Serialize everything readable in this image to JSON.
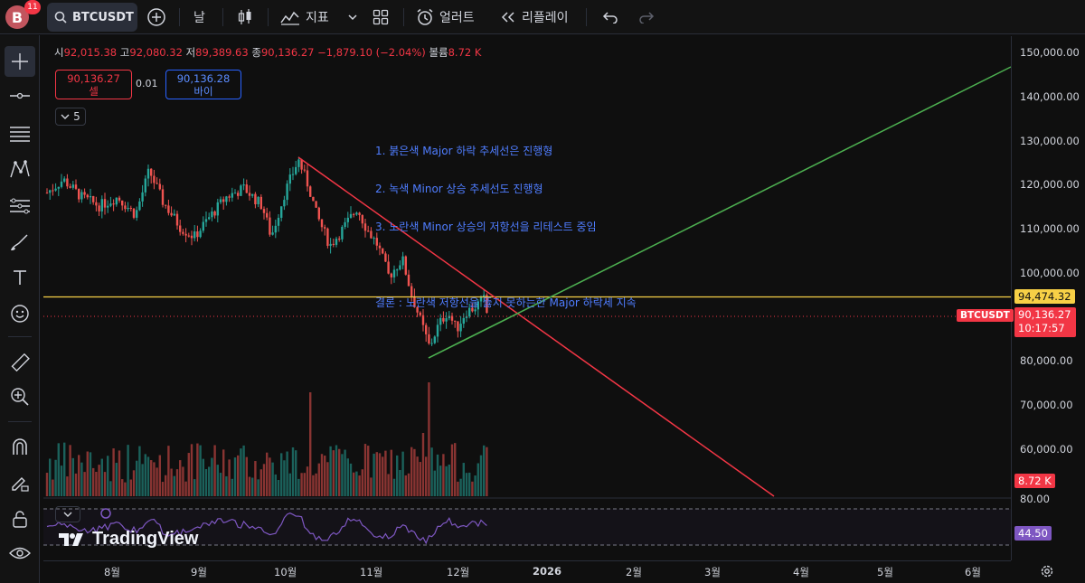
{
  "header": {
    "avatar_letter": "B",
    "notification_count": "11",
    "symbol": "BTCUSDT",
    "interval": "날",
    "indicators_label": "지표",
    "alerts_label": "얼러트",
    "replay_label": "리플레이"
  },
  "legend": {
    "open_label": "시",
    "open": "92,015.38",
    "high_label": "고",
    "high": "92,080.32",
    "low_label": "저",
    "low": "89,389.63",
    "close_label": "종",
    "close": "90,136.27",
    "change": "−1,879.10 (−2.04%)",
    "volume_label": "볼륨",
    "volume": "8.72 K"
  },
  "trade": {
    "sell_price": "90,136.27",
    "sell_label": "셀",
    "spread": "0.01",
    "buy_price": "90,136.28",
    "buy_label": "바이",
    "collapse_count": "5"
  },
  "annotation": {
    "line1": "1. 붉은색 Major 하락 추세선은 진행형",
    "line2": "2. 녹색 Minor 상승 추세선도 진행형",
    "line3": "3. 노란색 Minor 상승의 저항선을 리테스트 중임",
    "line4": "결론 : 노란색 저항선을 뚫지 못하는한 Major 하락세 지속"
  },
  "price_axis": {
    "labels": [
      "150,000.00",
      "140,000.00",
      "130,000.00",
      "120,000.00",
      "110,000.00",
      "100,000.00",
      "80,000.00",
      "70,000.00",
      "60,000.00",
      "80.00"
    ],
    "yellow_level": "94,474.32",
    "symbol_tag": "BTCUSDT",
    "last_price": "90,136.27",
    "countdown": "10:17:57",
    "volume_tag": "8.72 K",
    "rsi_tag": "44.50"
  },
  "time_axis": [
    "8월",
    "9월",
    "10월",
    "11월",
    "12월",
    "2026",
    "2월",
    "3월",
    "4월",
    "5월",
    "6월"
  ],
  "brand": "TradingView",
  "chart_data": {
    "type": "candlestick",
    "symbol": "BTCUSDT",
    "interval": "1D",
    "ylim": [
      80000,
      150000
    ],
    "last_price": 90136.27,
    "resistance_level": 94474.32,
    "trendlines": [
      {
        "color": "#f23645",
        "from": [
          "10월 초",
          126000
        ],
        "to": [
          "3월 말",
          57000
        ]
      },
      {
        "color": "#4caf50",
        "from": [
          "11월 말",
          80800
        ],
        "to": [
          "6월 말",
          146500
        ]
      }
    ],
    "rsi_last": 44.5,
    "volume_last": "8.72 K",
    "colors": {
      "up": "#26a69a",
      "down": "#ef5350",
      "resistance": "#f7d046",
      "rsi": "#7e57c2"
    }
  }
}
